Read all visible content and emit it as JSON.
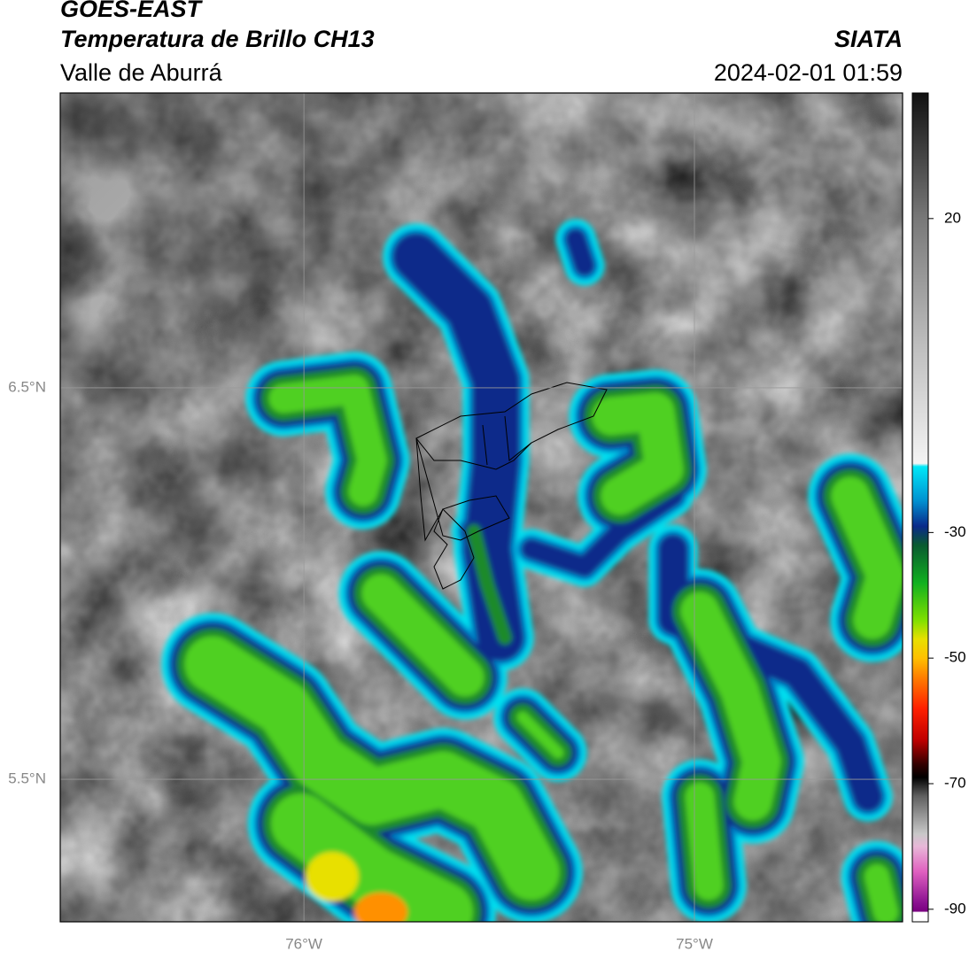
{
  "header": {
    "title": "GOES-EAST",
    "subtitle": "Temperatura de Brillo CH13",
    "region": "Valle de Aburrá",
    "agency": "SIATA",
    "datetime": "2024-02-01 01:59"
  },
  "map": {
    "lon_range": [
      -76.624,
      -74.467
    ],
    "lat_range": [
      5.136,
      7.253
    ],
    "lon_ticks": [
      {
        "value": -76,
        "label": "76°W"
      },
      {
        "value": -75,
        "label": "75°W"
      }
    ],
    "lat_ticks": [
      {
        "value": 6.5,
        "label": "6.5°N"
      },
      {
        "value": 5.5,
        "label": "5.5°N"
      }
    ],
    "grid": true
  },
  "colorbar": {
    "range": [
      -92,
      40
    ],
    "ticks": [
      20,
      -30,
      -50,
      -70,
      -90
    ],
    "stops": [
      {
        "value": 40,
        "color": "#111111"
      },
      {
        "value": 20,
        "color": "#787878"
      },
      {
        "value": 0,
        "color": "#bdbdbd"
      },
      {
        "value": -19,
        "color": "#f4f4f4"
      },
      {
        "value": -19.5,
        "color": "#00e8f8"
      },
      {
        "value": -25,
        "color": "#0090d0"
      },
      {
        "value": -29,
        "color": "#0a2a8a"
      },
      {
        "value": -32,
        "color": "#0a5a30"
      },
      {
        "value": -38,
        "color": "#10b020"
      },
      {
        "value": -44,
        "color": "#80e000"
      },
      {
        "value": -47,
        "color": "#e8e000"
      },
      {
        "value": -50,
        "color": "#ffc000"
      },
      {
        "value": -53,
        "color": "#ff8000"
      },
      {
        "value": -58,
        "color": "#ff2000"
      },
      {
        "value": -63,
        "color": "#c00000"
      },
      {
        "value": -67,
        "color": "#300000"
      },
      {
        "value": -69,
        "color": "#000000"
      },
      {
        "value": -72,
        "color": "#606060"
      },
      {
        "value": -78,
        "color": "#c8c8c8"
      },
      {
        "value": -80,
        "color": "#e8b8d8"
      },
      {
        "value": -84,
        "color": "#e060c0"
      },
      {
        "value": -89,
        "color": "#8a1090"
      },
      {
        "value": -90.3,
        "color": "#7a0080"
      },
      {
        "value": -90.5,
        "color": "#ffffff"
      },
      {
        "value": -92,
        "color": "#ffffff"
      }
    ]
  }
}
